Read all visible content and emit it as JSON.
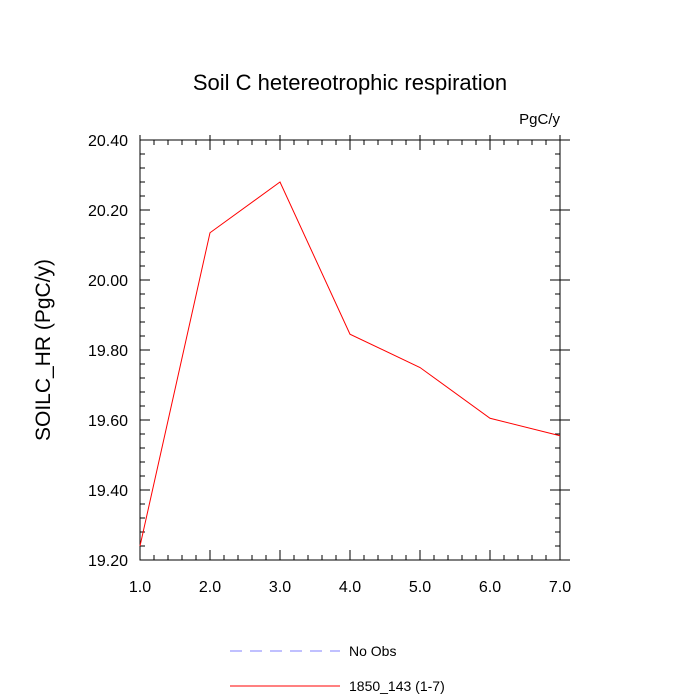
{
  "chart_data": {
    "type": "line",
    "title": "Soil C hetereotrophic respiration",
    "units": "PgC/y",
    "xlabel": "",
    "ylabel": "SOILC_HR  (PgC/y)",
    "xlim": [
      1.0,
      7.0
    ],
    "ylim": [
      19.2,
      20.4
    ],
    "x_ticks": [
      "1.0",
      "2.0",
      "3.0",
      "4.0",
      "5.0",
      "6.0",
      "7.0"
    ],
    "y_ticks": [
      "19.20",
      "19.40",
      "19.60",
      "19.80",
      "20.00",
      "20.20",
      "20.40"
    ],
    "grid": false,
    "legend_position": "bottom",
    "series": [
      {
        "name": "No Obs",
        "color": "#8080ff",
        "dash": "dashed",
        "x": [],
        "y": []
      },
      {
        "name": "1850_143 (1-7)",
        "color": "#ff0000",
        "dash": "solid",
        "x": [
          1,
          2,
          3,
          4,
          5,
          6,
          7
        ],
        "y": [
          19.24,
          20.135,
          20.28,
          19.845,
          19.75,
          19.605,
          19.555
        ]
      }
    ]
  }
}
